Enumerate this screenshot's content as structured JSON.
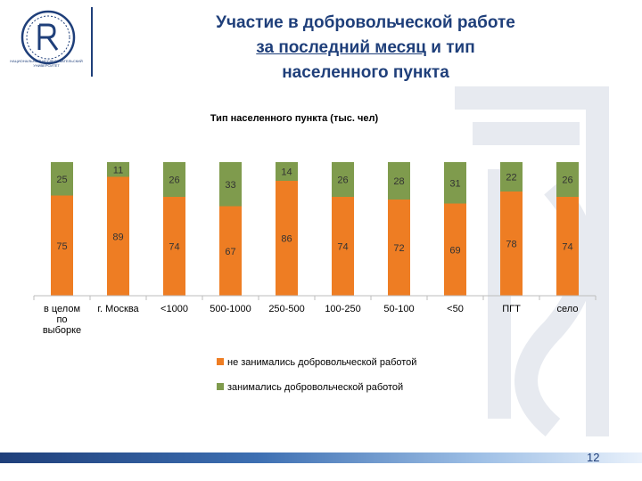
{
  "header": {
    "title_line1": "Участие в добровольческой работе",
    "title_line2": "за последний месяц",
    "title_line2_rest": " и тип",
    "title_line3": "населенного пункта"
  },
  "logo": {
    "icon": "hse-logo-icon",
    "text": "национальный исследовательский университет"
  },
  "chart_data": {
    "type": "bar",
    "stacked": true,
    "title": "Тип населенного пункта (тыс. чел)",
    "categories": [
      "в целом по выборке",
      "г. Москва",
      "<1000",
      "500-1000",
      "250-500",
      "100-250",
      "50-100",
      "<50",
      "ПГТ",
      "село"
    ],
    "series": [
      {
        "name": "не занимались добровольческой работой",
        "color": "#ee7d23",
        "values": [
          75,
          89,
          74,
          67,
          86,
          74,
          72,
          69,
          78,
          74
        ]
      },
      {
        "name": "занимались добровольческой работой",
        "color": "#7f9b4d",
        "values": [
          25,
          11,
          26,
          33,
          14,
          26,
          28,
          31,
          22,
          26
        ]
      }
    ],
    "ylim": [
      0,
      100
    ],
    "grid": false,
    "legend_position": "bottom"
  },
  "footer": {
    "page_number": "12"
  },
  "colors": {
    "brand": "#1f3f7a",
    "orange": "#ee7d23",
    "green": "#7f9b4d"
  }
}
